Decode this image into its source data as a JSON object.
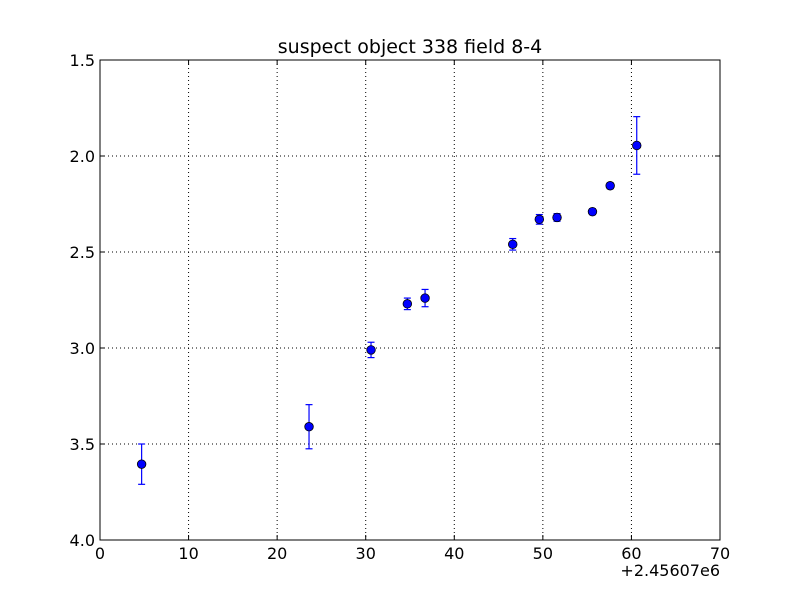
{
  "chart_data": {
    "type": "scatter",
    "title": "suspect object 338 field 8-4",
    "xlabel": "",
    "ylabel": "",
    "x_offset_label": "+2.45607e6",
    "xlim": [
      0,
      70
    ],
    "ylim": [
      1.5,
      4.0
    ],
    "y_inverted": true,
    "grid": true,
    "x_ticks": [
      0,
      10,
      20,
      30,
      40,
      50,
      60,
      70
    ],
    "x_tick_labels": [
      "0",
      "10",
      "20",
      "30",
      "40",
      "50",
      "60",
      "70"
    ],
    "y_ticks": [
      1.5,
      2.0,
      2.5,
      3.0,
      3.5,
      4.0
    ],
    "y_tick_labels": [
      "1.5",
      "2.0",
      "2.5",
      "3.0",
      "3.5",
      "4.0"
    ],
    "series": [
      {
        "marker": "circle",
        "color": "#0000ff",
        "points": [
          {
            "x": 4.7,
            "y": 3.605,
            "err": 0.105
          },
          {
            "x": 23.6,
            "y": 3.41,
            "err": 0.115
          },
          {
            "x": 30.6,
            "y": 3.01,
            "err": 0.04
          },
          {
            "x": 34.7,
            "y": 2.77,
            "err": 0.03
          },
          {
            "x": 36.7,
            "y": 2.74,
            "err": 0.045
          },
          {
            "x": 46.6,
            "y": 2.46,
            "err": 0.03
          },
          {
            "x": 49.6,
            "y": 2.33,
            "err": 0.025
          },
          {
            "x": 51.6,
            "y": 2.32,
            "err": 0.02
          },
          {
            "x": 55.6,
            "y": 2.29,
            "err": 0.015
          },
          {
            "x": 57.6,
            "y": 2.155,
            "err": 0.015
          },
          {
            "x": 60.6,
            "y": 1.945,
            "err": 0.15
          }
        ]
      }
    ]
  }
}
